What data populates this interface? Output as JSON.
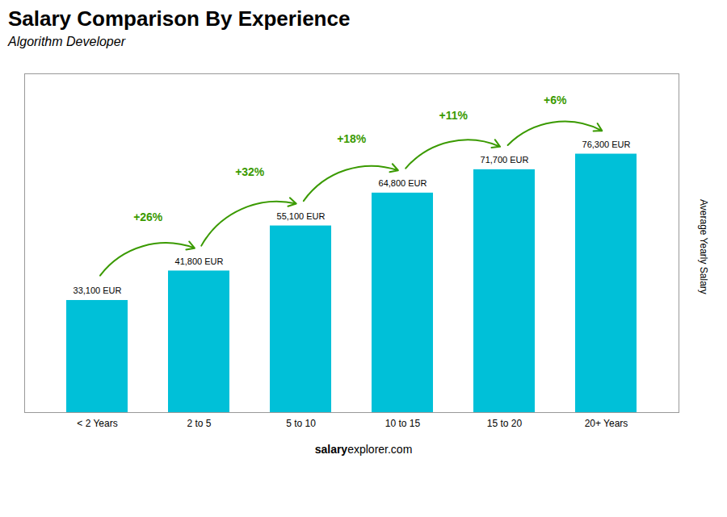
{
  "chart_data": {
    "type": "bar",
    "title": "Salary Comparison By Experience",
    "subtitle": "Algorithm Developer",
    "categories": [
      "< 2 Years",
      "2 to 5",
      "5 to 10",
      "10 to 15",
      "15 to 20",
      "20+ Years"
    ],
    "values": [
      33100,
      41800,
      55100,
      64800,
      71700,
      76300
    ],
    "value_labels": [
      "33,100 EUR",
      "41,800 EUR",
      "55,100 EUR",
      "64,800 EUR",
      "71,700 EUR",
      "76,300 EUR"
    ],
    "data_labels": true,
    "color": "#00c0d8",
    "ylabel": "Average Yearly Salary",
    "ylim": [
      0,
      100000
    ],
    "tick_labels": "x",
    "grid": false,
    "annotations": [
      "+26%",
      "+32%",
      "+18%",
      "+11%",
      "+6%"
    ],
    "footer": [
      "salary",
      "explorer.com"
    ]
  }
}
